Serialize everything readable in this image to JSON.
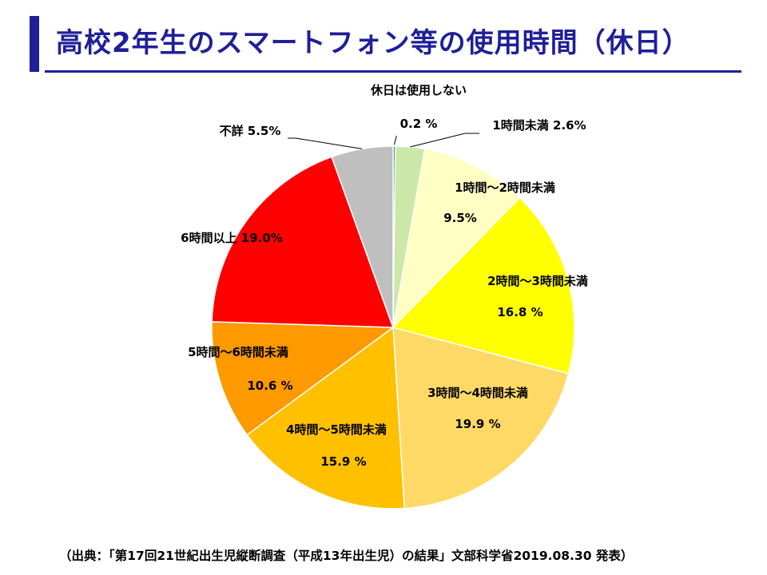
{
  "slide": {
    "title": "高校2年生のスマートフォン等の使用時間（休日）",
    "source": "（出典：「第17回21世紀出生児縦断調査（平成13年出生児）の結果」文部科学省2019.08.30 発表）"
  },
  "chart_data": {
    "type": "pie",
    "title": "",
    "start_angle_deg": 0,
    "direction": "clockwise",
    "slices": [
      {
        "name": "休日は使用しない",
        "value": 0.2,
        "value_label": "0.2 %",
        "color": "#1a9a8a"
      },
      {
        "name": "1時間未満",
        "value": 2.6,
        "value_label": "2.6%",
        "color": "#cce8a8"
      },
      {
        "name": "1時間～2時間未満",
        "value": 9.5,
        "value_label": "9.5%",
        "color": "#ffffc4"
      },
      {
        "name": "2時間～3時間未満",
        "value": 16.8,
        "value_label": "16.8 %",
        "color": "#ffff00"
      },
      {
        "name": "3時間～4時間未満",
        "value": 19.9,
        "value_label": "19.9 %",
        "color": "#ffd966"
      },
      {
        "name": "4時間～5時間未満",
        "value": 15.9,
        "value_label": "15.9 %",
        "color": "#ffc000"
      },
      {
        "name": "5時間～6時間未満",
        "value": 10.6,
        "value_label": "10.6 %",
        "color": "#ff9900"
      },
      {
        "name": "6時間以上",
        "value": 19.0,
        "value_label": "19.0%",
        "color": "#ff0000"
      },
      {
        "name": "不詳",
        "value": 5.5,
        "value_label": "5.5%",
        "color": "#bfbfbf"
      }
    ]
  }
}
